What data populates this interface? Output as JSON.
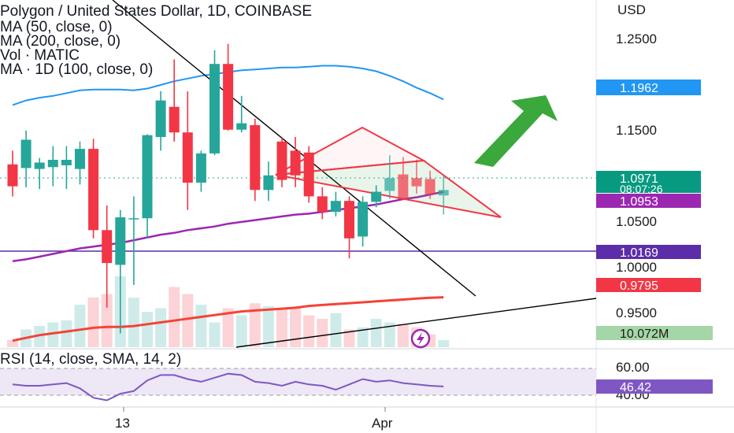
{
  "legend": {
    "title": "Polygon / United States Dollar, 1D, COINBASE",
    "ma50": "MA (50, close, 0)",
    "ma200": "MA (200, close, 0)",
    "vol": "Vol · MATIC",
    "ma100": "MA · 1D (100, close, 0)"
  },
  "rsi_label": "RSI (14, close, SMA, 14, 2)",
  "currency": "USD",
  "x_labels": [
    "13",
    "Apr"
  ],
  "price_ticks": [
    "1.2500",
    "1.1500",
    "1.0500",
    "1.0000",
    "0.9500"
  ],
  "rsi_ticks": [
    "60.00",
    "40.00"
  ],
  "badges": {
    "ma50": "1.1962",
    "price": "1.0971",
    "countdown": "08:07:26",
    "ma200": "1.0953",
    "level": "1.0169",
    "ma100": "0.9795",
    "volume": "10.072M",
    "rsi": "46.42"
  },
  "colors": {
    "up": "#26a69a",
    "down": "#f23645",
    "ma50": "#2196f3",
    "ma200": "#9c27b0",
    "ma100": "#f44336",
    "level": "#5b2da8",
    "rsi": "#7e57c2",
    "arrow": "#3aa83a"
  },
  "chart_data": {
    "type": "candlestick",
    "symbol": "Polygon / United States Dollar",
    "interval": "1D",
    "exchange": "COINBASE",
    "y_range": [
      0.905,
      1.305
    ],
    "candles": [
      {
        "o": 1.125,
        "h": 1.14,
        "l": 1.09,
        "c": 1.101
      },
      {
        "o": 1.121,
        "h": 1.162,
        "l": 1.1,
        "c": 1.152
      },
      {
        "o": 1.12,
        "h": 1.132,
        "l": 1.098,
        "c": 1.127
      },
      {
        "o": 1.122,
        "h": 1.145,
        "l": 1.101,
        "c": 1.13
      },
      {
        "o": 1.124,
        "h": 1.145,
        "l": 1.098,
        "c": 1.13
      },
      {
        "o": 1.12,
        "h": 1.15,
        "l": 1.103,
        "c": 1.142
      },
      {
        "o": 1.142,
        "h": 1.153,
        "l": 1.044,
        "c": 1.053
      },
      {
        "o": 1.053,
        "h": 1.08,
        "l": 0.968,
        "c": 1.017
      },
      {
        "o": 1.015,
        "h": 1.075,
        "l": 0.94,
        "c": 1.067
      },
      {
        "o": 1.065,
        "h": 1.09,
        "l": 0.993,
        "c": 1.066
      },
      {
        "o": 1.066,
        "h": 1.158,
        "l": 1.045,
        "c": 1.157
      },
      {
        "o": 1.155,
        "h": 1.205,
        "l": 1.14,
        "c": 1.195
      },
      {
        "o": 1.188,
        "h": 1.24,
        "l": 1.15,
        "c": 1.16
      },
      {
        "o": 1.16,
        "h": 1.205,
        "l": 1.075,
        "c": 1.105
      },
      {
        "o": 1.105,
        "h": 1.14,
        "l": 1.095,
        "c": 1.137
      },
      {
        "o": 1.137,
        "h": 1.25,
        "l": 1.135,
        "c": 1.235
      },
      {
        "o": 1.235,
        "h": 1.257,
        "l": 1.162,
        "c": 1.163
      },
      {
        "o": 1.163,
        "h": 1.2,
        "l": 1.16,
        "c": 1.17
      },
      {
        "o": 1.168,
        "h": 1.175,
        "l": 1.085,
        "c": 1.097
      },
      {
        "o": 1.097,
        "h": 1.128,
        "l": 1.085,
        "c": 1.113
      },
      {
        "o": 1.15,
        "h": 1.154,
        "l": 1.1,
        "c": 1.108
      },
      {
        "o": 1.14,
        "h": 1.155,
        "l": 1.1,
        "c": 1.113
      },
      {
        "o": 1.138,
        "h": 1.145,
        "l": 1.083,
        "c": 1.09
      },
      {
        "o": 1.09,
        "h": 1.1,
        "l": 1.065,
        "c": 1.073
      },
      {
        "o": 1.073,
        "h": 1.095,
        "l": 1.068,
        "c": 1.085
      },
      {
        "o": 1.085,
        "h": 1.09,
        "l": 1.022,
        "c": 1.044
      },
      {
        "o": 1.046,
        "h": 1.09,
        "l": 1.035,
        "c": 1.084
      },
      {
        "o": 1.084,
        "h": 1.102,
        "l": 1.078,
        "c": 1.095
      },
      {
        "o": 1.096,
        "h": 1.135,
        "l": 1.087,
        "c": 1.11
      },
      {
        "o": 1.114,
        "h": 1.133,
        "l": 1.086,
        "c": 1.087
      },
      {
        "o": 1.11,
        "h": 1.13,
        "l": 1.093,
        "c": 1.101
      },
      {
        "o": 1.109,
        "h": 1.118,
        "l": 1.087,
        "c": 1.092
      },
      {
        "o": 1.091,
        "h": 1.113,
        "l": 1.07,
        "c": 1.097
      }
    ],
    "ma50": [
      1.19,
      1.195,
      1.198,
      1.2,
      1.203,
      1.206,
      1.207,
      1.207,
      1.207,
      1.206,
      1.208,
      1.212,
      1.216,
      1.219,
      1.222,
      1.224,
      1.226,
      1.228,
      1.229,
      1.23,
      1.231,
      1.231,
      1.232,
      1.233,
      1.233,
      1.232,
      1.23,
      1.227,
      1.222,
      1.216,
      1.209,
      1.203,
      1.196
    ],
    "ma200": [
      1.019,
      1.021,
      1.024,
      1.027,
      1.03,
      1.033,
      1.035,
      1.037,
      1.039,
      1.042,
      1.045,
      1.048,
      1.05,
      1.053,
      1.055,
      1.057,
      1.06,
      1.062,
      1.064,
      1.066,
      1.068,
      1.07,
      1.071,
      1.073,
      1.075,
      1.077,
      1.079,
      1.081,
      1.084,
      1.087,
      1.089,
      1.092,
      1.095
    ],
    "ma100": [
      0.932,
      0.935,
      0.938,
      0.94,
      0.942,
      0.944,
      0.946,
      0.947,
      0.947,
      0.948,
      0.95,
      0.952,
      0.954,
      0.956,
      0.958,
      0.96,
      0.962,
      0.964,
      0.965,
      0.966,
      0.967,
      0.968,
      0.97,
      0.971,
      0.972,
      0.973,
      0.974,
      0.975,
      0.976,
      0.977,
      0.978,
      0.979,
      0.9795
    ],
    "volume_rel": [
      0.1,
      0.25,
      0.3,
      0.35,
      0.38,
      0.6,
      0.7,
      0.75,
      1.0,
      0.7,
      0.5,
      0.55,
      0.85,
      0.75,
      0.6,
      0.35,
      0.55,
      0.45,
      0.62,
      0.58,
      0.55,
      0.55,
      0.45,
      0.4,
      0.48,
      0.25,
      0.28,
      0.4,
      0.35,
      0.33,
      0.28,
      0.18,
      0.1
    ],
    "rsi": [
      48,
      47,
      47,
      48,
      49,
      45,
      38,
      36,
      41,
      43,
      51,
      55,
      55,
      52,
      50,
      53,
      56,
      55,
      50,
      49,
      47,
      50,
      48,
      47,
      44,
      48,
      52,
      50,
      51,
      49,
      48,
      47,
      46.42
    ],
    "rsi_range": [
      31,
      73
    ],
    "level_line": 1.0169,
    "last": {
      "price": 1.0971,
      "ma50": 1.1962,
      "ma200": 1.0953,
      "ma100": 0.9795,
      "volume": "10.072M",
      "rsi": 46.42
    }
  }
}
